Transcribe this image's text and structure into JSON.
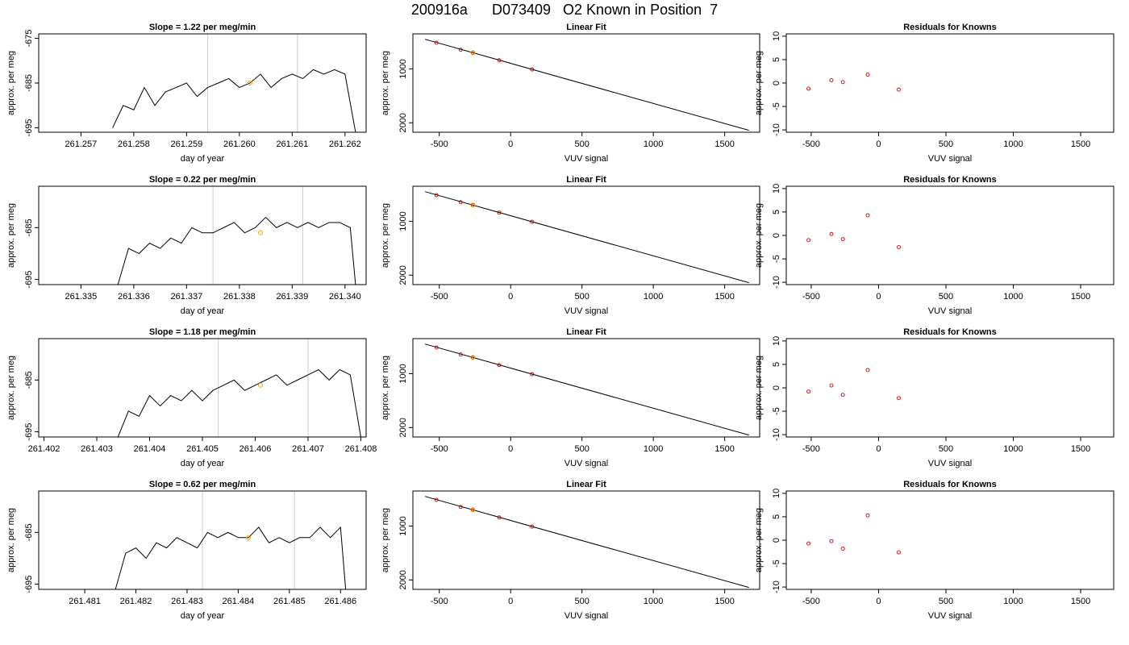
{
  "page_title": "200916a      D073409   O2 Known in Position  7",
  "colors": {
    "line": "#000000",
    "reference": "#cccccc",
    "highlight": "#ffa500",
    "point": "#cc0000"
  },
  "chart_data": [
    {
      "type": "line",
      "title": "Slope =  1.22  per meg/min",
      "xlabel": "day of year",
      "ylabel": "approx. per meg",
      "xlim": [
        261.2562,
        261.2624
      ],
      "ylim": [
        -696,
        -674
      ],
      "xticks": [
        261.257,
        261.258,
        261.259,
        261.26,
        261.261,
        261.262
      ],
      "xtick_labels": [
        "261.257",
        "261.258",
        "261.259",
        "261.260",
        "261.261",
        "261.262"
      ],
      "yticks": [
        -695,
        -685,
        -675
      ],
      "ytick_labels": [
        "-695",
        "-685",
        "-675"
      ],
      "vlines": [
        261.2594,
        261.2611
      ],
      "series": [
        {
          "x": [
            261.2576,
            261.2578,
            261.258,
            261.2582,
            261.2584,
            261.2586,
            261.2588,
            261.259,
            261.2592,
            261.2594,
            261.2596,
            261.2598,
            261.26,
            261.2602,
            261.2604,
            261.2606,
            261.2608,
            261.261,
            261.2612,
            261.2614,
            261.2616,
            261.2618,
            261.262,
            261.2622
          ],
          "y": [
            -695,
            -690,
            -691,
            -686,
            -690,
            -687,
            -686,
            -685,
            -688,
            -686,
            -685,
            -684,
            -686,
            -685,
            -683,
            -686,
            -684,
            -683,
            -684,
            -682,
            -683,
            -682,
            -683,
            -696
          ]
        }
      ],
      "highlight_point": [
        261.2602,
        -685
      ]
    },
    {
      "type": "line",
      "title": "Slope =  0.22  per meg/min",
      "xlabel": "day of year",
      "ylabel": "approx. per meg",
      "xlim": [
        261.3342,
        261.3404
      ],
      "ylim": [
        -696,
        -677
      ],
      "xticks": [
        261.335,
        261.336,
        261.337,
        261.338,
        261.339,
        261.34
      ],
      "xtick_labels": [
        "261.335",
        "261.336",
        "261.337",
        "261.338",
        "261.339",
        "261.340"
      ],
      "yticks": [
        -695,
        -685
      ],
      "ytick_labels": [
        "-695",
        "-685"
      ],
      "vlines": [
        261.3375,
        261.3392
      ],
      "series": [
        {
          "x": [
            261.3357,
            261.3359,
            261.3361,
            261.3363,
            261.3365,
            261.3367,
            261.3369,
            261.3371,
            261.3373,
            261.3375,
            261.3377,
            261.3379,
            261.3381,
            261.3383,
            261.3385,
            261.3387,
            261.3389,
            261.3391,
            261.3393,
            261.3395,
            261.3397,
            261.3399,
            261.3401,
            261.3402
          ],
          "y": [
            -696,
            -689,
            -690,
            -688,
            -689,
            -687,
            -688,
            -685,
            -686,
            -686,
            -685,
            -684,
            -686,
            -685,
            -683,
            -685,
            -684,
            -685,
            -684,
            -685,
            -684,
            -684,
            -685,
            -696
          ]
        }
      ],
      "highlight_point": [
        261.3384,
        -686
      ]
    },
    {
      "type": "line",
      "title": "Slope =  1.18  per meg/min",
      "xlabel": "day of year",
      "ylabel": "approx. per meg",
      "xlim": [
        261.4019,
        261.4081
      ],
      "ylim": [
        -696,
        -677
      ],
      "xticks": [
        261.402,
        261.403,
        261.404,
        261.405,
        261.406,
        261.407,
        261.408
      ],
      "xtick_labels": [
        "261.402",
        "261.403",
        "261.404",
        "261.405",
        "261.406",
        "261.407",
        "261.408"
      ],
      "yticks": [
        -695,
        -685
      ],
      "ytick_labels": [
        "-695",
        "-685"
      ],
      "vlines": [
        261.4053,
        261.407
      ],
      "series": [
        {
          "x": [
            261.4034,
            261.4036,
            261.4038,
            261.404,
            261.4042,
            261.4044,
            261.4046,
            261.4048,
            261.405,
            261.4052,
            261.4054,
            261.4056,
            261.4058,
            261.406,
            261.4062,
            261.4064,
            261.4066,
            261.4068,
            261.407,
            261.4072,
            261.4074,
            261.4076,
            261.4078,
            261.408
          ],
          "y": [
            -696,
            -691,
            -692,
            -688,
            -690,
            -688,
            -689,
            -687,
            -689,
            -687,
            -686,
            -685,
            -687,
            -686,
            -685,
            -684,
            -686,
            -685,
            -684,
            -683,
            -685,
            -683,
            -684,
            -696
          ]
        }
      ],
      "highlight_point": [
        261.4061,
        -686
      ]
    },
    {
      "type": "line",
      "title": "Slope =  0.62  per meg/min",
      "xlabel": "day of year",
      "ylabel": "approx. per meg",
      "xlim": [
        261.4801,
        261.4865
      ],
      "ylim": [
        -696,
        -677
      ],
      "xticks": [
        261.481,
        261.482,
        261.483,
        261.484,
        261.485,
        261.486
      ],
      "xtick_labels": [
        "261.481",
        "261.482",
        "261.483",
        "261.484",
        "261.485",
        "261.486"
      ],
      "yticks": [
        -695,
        -685
      ],
      "ytick_labels": [
        "-695",
        "-685"
      ],
      "vlines": [
        261.4833,
        261.4851
      ],
      "series": [
        {
          "x": [
            261.4816,
            261.4818,
            261.482,
            261.4822,
            261.4824,
            261.4826,
            261.4828,
            261.483,
            261.4832,
            261.4834,
            261.4836,
            261.4838,
            261.484,
            261.4842,
            261.4844,
            261.4846,
            261.4848,
            261.485,
            261.4852,
            261.4854,
            261.4856,
            261.4858,
            261.486,
            261.4861
          ],
          "y": [
            -696,
            -689,
            -688,
            -690,
            -687,
            -688,
            -686,
            -687,
            -688,
            -685,
            -686,
            -685,
            -686,
            -686,
            -684,
            -687,
            -686,
            -687,
            -686,
            -686,
            -684,
            -686,
            -684,
            -696
          ]
        }
      ],
      "highlight_point": [
        261.4842,
        -686
      ]
    },
    {
      "type": "scatter",
      "title": "Linear Fit",
      "xlabel": "VUV signal",
      "ylabel": "approx. per meg",
      "xlim": [
        -685,
        1745
      ],
      "ylim": [
        -2175,
        -350
      ],
      "xticks": [
        -500,
        0,
        500,
        1000,
        1500
      ],
      "xtick_labels": [
        "-500",
        "0",
        "500",
        "1000",
        "1500"
      ],
      "yticks": [
        -2000,
        -1000
      ],
      "ytick_labels": [
        "2000",
        "1000"
      ],
      "fit_line": {
        "x": [
          -600,
          1670
        ],
        "y": [
          -450,
          -2140
        ]
      },
      "points": {
        "x": [
          -520,
          -350,
          -265,
          -80,
          150
        ],
        "y": [
          -515,
          -645,
          -700,
          -840,
          -1010
        ]
      },
      "highlight_point": [
        -265,
        -700
      ]
    },
    {
      "type": "scatter",
      "title": "Linear Fit",
      "xlabel": "VUV signal",
      "ylabel": "approx. per meg",
      "xlim": [
        -685,
        1745
      ],
      "ylim": [
        -2175,
        -350
      ],
      "xticks": [
        -500,
        0,
        500,
        1000,
        1500
      ],
      "xtick_labels": [
        "-500",
        "0",
        "500",
        "1000",
        "1500"
      ],
      "yticks": [
        -2000,
        -1000
      ],
      "ytick_labels": [
        "2000",
        "1000"
      ],
      "fit_line": {
        "x": [
          -600,
          1670
        ],
        "y": [
          -450,
          -2140
        ]
      },
      "points": {
        "x": [
          -520,
          -350,
          -265,
          -80,
          150
        ],
        "y": [
          -515,
          -645,
          -700,
          -840,
          -1010
        ]
      },
      "highlight_point": [
        -265,
        -700
      ]
    },
    {
      "type": "scatter",
      "title": "Linear Fit",
      "xlabel": "VUV signal",
      "ylabel": "approx. per meg",
      "xlim": [
        -685,
        1745
      ],
      "ylim": [
        -2175,
        -350
      ],
      "xticks": [
        -500,
        0,
        500,
        1000,
        1500
      ],
      "xtick_labels": [
        "-500",
        "0",
        "500",
        "1000",
        "1500"
      ],
      "yticks": [
        -2000,
        -1000
      ],
      "ytick_labels": [
        "2000",
        "1000"
      ],
      "fit_line": {
        "x": [
          -600,
          1670
        ],
        "y": [
          -450,
          -2140
        ]
      },
      "points": {
        "x": [
          -520,
          -350,
          -265,
          -80,
          150
        ],
        "y": [
          -515,
          -645,
          -700,
          -840,
          -1010
        ]
      },
      "highlight_point": [
        -265,
        -700
      ]
    },
    {
      "type": "scatter",
      "title": "Linear Fit",
      "xlabel": "VUV signal",
      "ylabel": "approx. per meg",
      "xlim": [
        -685,
        1745
      ],
      "ylim": [
        -2175,
        -350
      ],
      "xticks": [
        -500,
        0,
        500,
        1000,
        1500
      ],
      "xtick_labels": [
        "-500",
        "0",
        "500",
        "1000",
        "1500"
      ],
      "yticks": [
        -2000,
        -1000
      ],
      "ytick_labels": [
        "2000",
        "1000"
      ],
      "fit_line": {
        "x": [
          -600,
          1670
        ],
        "y": [
          -450,
          -2140
        ]
      },
      "points": {
        "x": [
          -520,
          -350,
          -265,
          -80,
          150
        ],
        "y": [
          -515,
          -645,
          -700,
          -840,
          -1010
        ]
      },
      "highlight_point": [
        -265,
        -700
      ]
    },
    {
      "type": "scatter",
      "title": "Residuals for Knowns",
      "xlabel": "VUV signal",
      "ylabel": "approx. per meg",
      "xlim": [
        -685,
        1745
      ],
      "ylim": [
        -10.5,
        10.5
      ],
      "xticks": [
        -500,
        0,
        500,
        1000,
        1500
      ],
      "xtick_labels": [
        "-500",
        "0",
        "500",
        "1000",
        "1500"
      ],
      "yticks": [
        -10,
        -5,
        0,
        5,
        10
      ],
      "ytick_labels": [
        "-10",
        "-5",
        "0",
        "5",
        "10"
      ],
      "points": {
        "x": [
          -520,
          -350,
          -265,
          -80,
          150
        ],
        "y": [
          -1.2,
          0.6,
          0.2,
          1.8,
          -1.4
        ]
      }
    },
    {
      "type": "scatter",
      "title": "Residuals for Knowns",
      "xlabel": "VUV signal",
      "ylabel": "approx. per meg",
      "xlim": [
        -685,
        1745
      ],
      "ylim": [
        -10.5,
        10.5
      ],
      "xticks": [
        -500,
        0,
        500,
        1000,
        1500
      ],
      "xtick_labels": [
        "-500",
        "0",
        "500",
        "1000",
        "1500"
      ],
      "yticks": [
        -10,
        -5,
        0,
        5,
        10
      ],
      "ytick_labels": [
        "-10",
        "-5",
        "0",
        "5",
        "10"
      ],
      "points": {
        "x": [
          -520,
          -350,
          -265,
          -80,
          150
        ],
        "y": [
          -1.0,
          0.3,
          -0.8,
          4.3,
          -2.5
        ]
      }
    },
    {
      "type": "scatter",
      "title": "Residuals for Knowns",
      "xlabel": "VUV signal",
      "ylabel": "approx. per meg",
      "xlim": [
        -685,
        1745
      ],
      "ylim": [
        -10.5,
        10.5
      ],
      "xticks": [
        -500,
        0,
        500,
        1000,
        1500
      ],
      "xtick_labels": [
        "-500",
        "0",
        "500",
        "1000",
        "1500"
      ],
      "yticks": [
        -10,
        -5,
        0,
        5,
        10
      ],
      "ytick_labels": [
        "-10",
        "-5",
        "0",
        "5",
        "10"
      ],
      "points": {
        "x": [
          -520,
          -350,
          -265,
          -80,
          150
        ],
        "y": [
          -0.8,
          0.5,
          -1.5,
          3.8,
          -2.2
        ]
      }
    },
    {
      "type": "scatter",
      "title": "Residuals for Knowns",
      "xlabel": "VUV signal",
      "ylabel": "approx. per meg",
      "xlim": [
        -685,
        1745
      ],
      "ylim": [
        -10.5,
        10.5
      ],
      "xticks": [
        -500,
        0,
        500,
        1000,
        1500
      ],
      "xtick_labels": [
        "-500",
        "0",
        "500",
        "1000",
        "1500"
      ],
      "yticks": [
        -10,
        -5,
        0,
        5,
        10
      ],
      "ytick_labels": [
        "-10",
        "-5",
        "0",
        "5",
        "10"
      ],
      "points": {
        "x": [
          -520,
          -350,
          -265,
          -80,
          150
        ],
        "y": [
          -0.7,
          -0.2,
          -1.8,
          5.3,
          -2.6
        ]
      }
    }
  ]
}
